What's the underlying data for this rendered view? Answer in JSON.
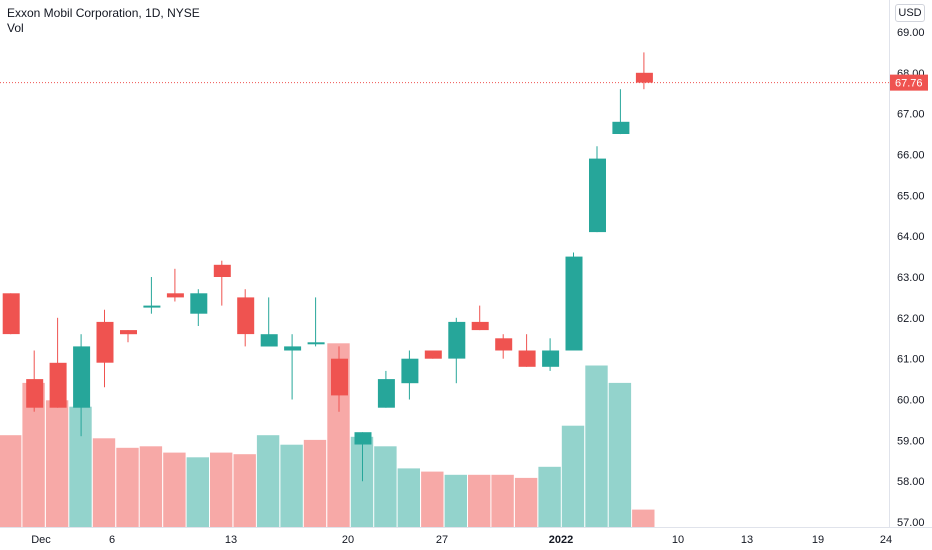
{
  "header": {
    "title": "Exxon Mobil Corporation, 1D, NYSE",
    "volume_label": "Vol",
    "currency": "USD"
  },
  "colors": {
    "up": "#26a69a",
    "down": "#ef5350",
    "vol_up": "#93d3cc",
    "vol_down": "#f7a9a7",
    "last_price_line": "#ef5350"
  },
  "chart_data": {
    "type": "candlestick",
    "symbol": "Exxon Mobil Corporation",
    "interval": "1D",
    "exchange": "NYSE",
    "currency": "USD",
    "last_price": "67.76",
    "y_range": [
      56.8,
      69.5
    ],
    "y_ticks": [
      "69.00",
      "68.00",
      "67.00",
      "66.00",
      "65.00",
      "64.00",
      "63.00",
      "62.00",
      "61.00",
      "60.00",
      "59.00",
      "58.00",
      "57.00"
    ],
    "x_ticks": [
      {
        "label": "Dec",
        "date": "2021-12-01"
      },
      {
        "label": "6",
        "date": "2021-12-06"
      },
      {
        "label": "13",
        "date": "2021-12-13"
      },
      {
        "label": "20",
        "date": "2021-12-20"
      },
      {
        "label": "27",
        "date": "2021-12-27"
      },
      {
        "label": "2022",
        "date": "2022-01-03",
        "bold": true
      },
      {
        "label": "10",
        "date": "2022-01-10"
      },
      {
        "label": "13",
        "date": "2022-01-13"
      },
      {
        "label": "19",
        "date": "2022-01-19"
      },
      {
        "label": "24",
        "date": "2022-01-24"
      }
    ],
    "candles": [
      {
        "date": "2021-11-29",
        "open": 62.6,
        "high": 62.6,
        "low": 61.6,
        "close": 61.6
      },
      {
        "date": "2021-11-30",
        "open": 60.5,
        "high": 61.2,
        "low": 59.7,
        "close": 59.8
      },
      {
        "date": "2021-12-01",
        "open": 60.9,
        "high": 62.0,
        "low": 59.8,
        "close": 59.8
      },
      {
        "date": "2021-12-02",
        "open": 59.8,
        "high": 61.6,
        "low": 59.1,
        "close": 61.3
      },
      {
        "date": "2021-12-03",
        "open": 61.9,
        "high": 62.2,
        "low": 60.3,
        "close": 60.9
      },
      {
        "date": "2021-12-06",
        "open": 61.7,
        "high": 61.7,
        "low": 61.4,
        "close": 61.6
      },
      {
        "date": "2021-12-07",
        "open": 62.3,
        "high": 63.0,
        "low": 62.1,
        "close": 62.3
      },
      {
        "date": "2021-12-08",
        "open": 62.6,
        "high": 63.2,
        "low": 62.4,
        "close": 62.5
      },
      {
        "date": "2021-12-09",
        "open": 62.1,
        "high": 62.7,
        "low": 61.8,
        "close": 62.6
      },
      {
        "date": "2021-12-10",
        "open": 63.3,
        "high": 63.4,
        "low": 62.3,
        "close": 63.0
      },
      {
        "date": "2021-12-13",
        "open": 62.5,
        "high": 62.7,
        "low": 61.3,
        "close": 61.6
      },
      {
        "date": "2021-12-14",
        "open": 61.3,
        "high": 62.5,
        "low": 61.3,
        "close": 61.6
      },
      {
        "date": "2021-12-15",
        "open": 61.2,
        "high": 61.6,
        "low": 60.0,
        "close": 61.3
      },
      {
        "date": "2021-12-16",
        "open": 61.4,
        "high": 62.5,
        "low": 61.3,
        "close": 61.4
      },
      {
        "date": "2021-12-17",
        "open": 61.0,
        "high": 61.3,
        "low": 59.7,
        "close": 60.1
      },
      {
        "date": "2021-12-20",
        "open": 58.9,
        "high": 59.2,
        "low": 58.0,
        "close": 59.2
      },
      {
        "date": "2021-12-21",
        "open": 59.8,
        "high": 60.7,
        "low": 59.8,
        "close": 60.5
      },
      {
        "date": "2021-12-22",
        "open": 60.4,
        "high": 61.2,
        "low": 60.0,
        "close": 61.0
      },
      {
        "date": "2021-12-23",
        "open": 61.2,
        "high": 61.2,
        "low": 61.0,
        "close": 61.0
      },
      {
        "date": "2021-12-27",
        "open": 61.0,
        "high": 62.0,
        "low": 60.4,
        "close": 61.9
      },
      {
        "date": "2021-12-28",
        "open": 61.9,
        "high": 62.3,
        "low": 61.7,
        "close": 61.7
      },
      {
        "date": "2021-12-29",
        "open": 61.5,
        "high": 61.6,
        "low": 61.0,
        "close": 61.2
      },
      {
        "date": "2021-12-30",
        "open": 61.2,
        "high": 61.6,
        "low": 60.8,
        "close": 60.8
      },
      {
        "date": "2021-12-31",
        "open": 60.8,
        "high": 61.5,
        "low": 60.7,
        "close": 61.2
      },
      {
        "date": "2022-01-03",
        "open": 61.2,
        "high": 63.6,
        "low": 61.2,
        "close": 63.5
      },
      {
        "date": "2022-01-04",
        "open": 64.1,
        "high": 66.2,
        "low": 64.1,
        "close": 65.9
      },
      {
        "date": "2022-01-05",
        "open": 66.5,
        "high": 67.6,
        "low": 66.5,
        "close": 66.8
      },
      {
        "date": "2022-01-06",
        "open": 68.0,
        "high": 68.5,
        "low": 67.6,
        "close": 67.76
      }
    ],
    "volume": [
      {
        "date": "2021-11-29",
        "value": 0.58,
        "direction": "down"
      },
      {
        "date": "2021-11-30",
        "value": 0.91,
        "direction": "down"
      },
      {
        "date": "2021-12-01",
        "value": 0.8,
        "direction": "down"
      },
      {
        "date": "2021-12-02",
        "value": 0.76,
        "direction": "up"
      },
      {
        "date": "2021-12-03",
        "value": 0.56,
        "direction": "down"
      },
      {
        "date": "2021-12-06",
        "value": 0.5,
        "direction": "down"
      },
      {
        "date": "2021-12-07",
        "value": 0.51,
        "direction": "down"
      },
      {
        "date": "2021-12-08",
        "value": 0.47,
        "direction": "down"
      },
      {
        "date": "2021-12-09",
        "value": 0.44,
        "direction": "up"
      },
      {
        "date": "2021-12-10",
        "value": 0.47,
        "direction": "down"
      },
      {
        "date": "2021-12-13",
        "value": 0.46,
        "direction": "down"
      },
      {
        "date": "2021-12-14",
        "value": 0.58,
        "direction": "up"
      },
      {
        "date": "2021-12-15",
        "value": 0.52,
        "direction": "up"
      },
      {
        "date": "2021-12-16",
        "value": 0.55,
        "direction": "down"
      },
      {
        "date": "2021-12-17",
        "value": 1.16,
        "direction": "down"
      },
      {
        "date": "2021-12-20",
        "value": 0.57,
        "direction": "up"
      },
      {
        "date": "2021-12-21",
        "value": 0.51,
        "direction": "up"
      },
      {
        "date": "2021-12-22",
        "value": 0.37,
        "direction": "up"
      },
      {
        "date": "2021-12-23",
        "value": 0.35,
        "direction": "down"
      },
      {
        "date": "2021-12-27",
        "value": 0.33,
        "direction": "up"
      },
      {
        "date": "2021-12-28",
        "value": 0.33,
        "direction": "down"
      },
      {
        "date": "2021-12-29",
        "value": 0.33,
        "direction": "down"
      },
      {
        "date": "2021-12-30",
        "value": 0.31,
        "direction": "down"
      },
      {
        "date": "2021-12-31",
        "value": 0.38,
        "direction": "up"
      },
      {
        "date": "2022-01-03",
        "value": 0.64,
        "direction": "up"
      },
      {
        "date": "2022-01-04",
        "value": 1.02,
        "direction": "up"
      },
      {
        "date": "2022-01-05",
        "value": 0.91,
        "direction": "up"
      },
      {
        "date": "2022-01-06",
        "value": 0.11,
        "direction": "down"
      }
    ],
    "grid": false,
    "legend": "none"
  }
}
